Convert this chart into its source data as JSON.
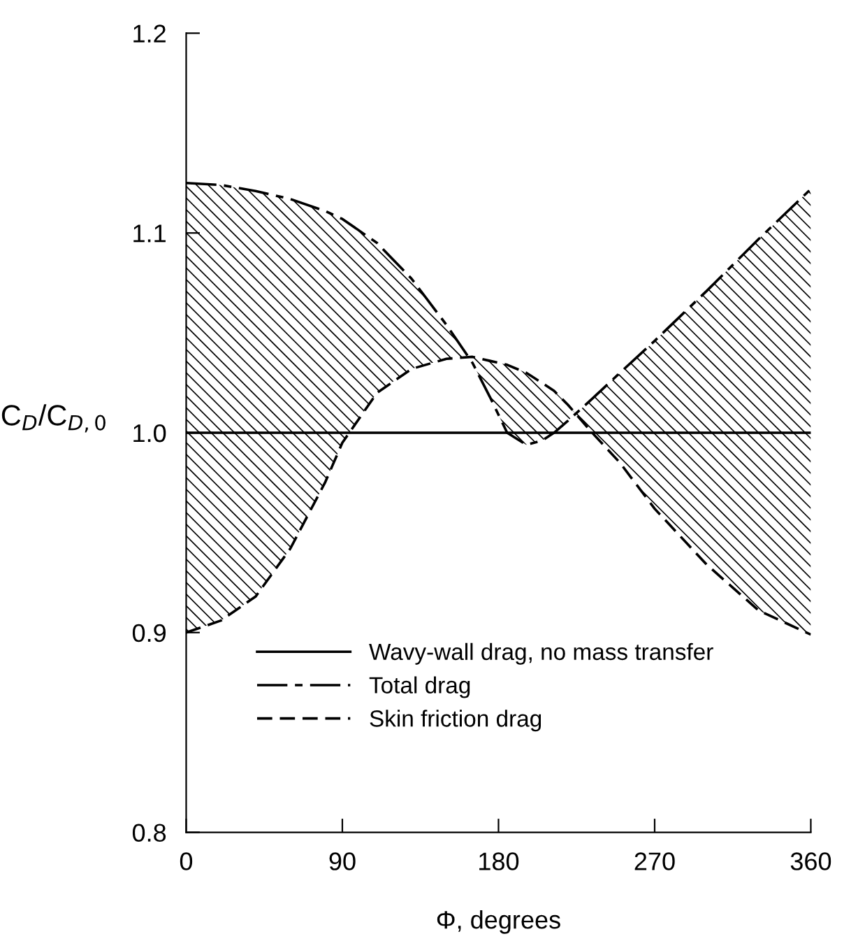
{
  "chart_data": {
    "type": "line",
    "xlabel": "Φ, degrees",
    "ylabel": "C$_{D}$/C$_{D,0}$",
    "xlim": [
      0,
      360
    ],
    "xticks": [
      0,
      90,
      180,
      270,
      360
    ],
    "ylim": [
      0.8,
      1.2
    ],
    "yticks": [
      {
        "value": 0.8,
        "label": "0.8"
      },
      {
        "value": 0.9,
        "label": "0.9"
      },
      {
        "value": 1.0,
        "label": "1.0"
      },
      {
        "value": 1.1,
        "label": "1.1"
      },
      {
        "value": 1.2,
        "label": "1.2"
      }
    ],
    "grid": false,
    "legend": "bottom left",
    "marker": "none",
    "series": [
      {
        "name": "Wavy-wall drag, no mass transfer",
        "color": "#000000",
        "line_style": "solid",
        "x": [
          0,
          360
        ],
        "values": [
          1.0,
          1.0
        ]
      },
      {
        "name": "Total drag",
        "color": "#000000",
        "line_style": "dashdot",
        "x": [
          0,
          20,
          40,
          60,
          80,
          90,
          110,
          130,
          150,
          165,
          175,
          185,
          196,
          205,
          212,
          220,
          234,
          250,
          270,
          300,
          330,
          360
        ],
        "values": [
          1.125,
          1.124,
          1.121,
          1.117,
          1.111,
          1.107,
          1.095,
          1.077,
          1.054,
          1.035,
          1.018,
          1.0,
          0.994,
          0.996,
          1.0,
          1.006,
          1.017,
          1.03,
          1.046,
          1.071,
          1.097,
          1.122
        ],
        "upper": [
          1.125,
          1.124,
          1.121,
          1.117,
          1.111,
          1.107,
          1.095,
          1.077,
          1.054,
          1.035,
          1.018,
          1.0,
          0.994,
          0.996,
          1.0,
          1.006,
          1.017,
          1.03,
          1.046,
          1.071,
          1.097,
          1.122
        ],
        "lower": [
          0.9,
          0.906,
          0.918,
          0.942,
          0.975,
          0.995,
          1.02,
          1.032,
          1.037,
          1.038,
          1.036,
          1.034,
          1.03,
          1.025,
          1.021,
          1.014,
          1.0,
          0.985,
          0.962,
          0.934,
          0.911,
          0.899
        ]
      },
      {
        "name": "Skin friction drag",
        "color": "#000000",
        "line_style": "dashed",
        "x": [
          0,
          20,
          40,
          60,
          80,
          90,
          110,
          130,
          150,
          165,
          175,
          185,
          196,
          205,
          212,
          220,
          234,
          250,
          270,
          300,
          330,
          360
        ],
        "values": [
          0.9,
          0.906,
          0.918,
          0.942,
          0.975,
          0.995,
          1.02,
          1.032,
          1.037,
          1.038,
          1.036,
          1.034,
          1.03,
          1.025,
          1.021,
          1.014,
          1.0,
          0.985,
          0.962,
          0.934,
          0.911,
          0.899
        ]
      }
    ]
  }
}
